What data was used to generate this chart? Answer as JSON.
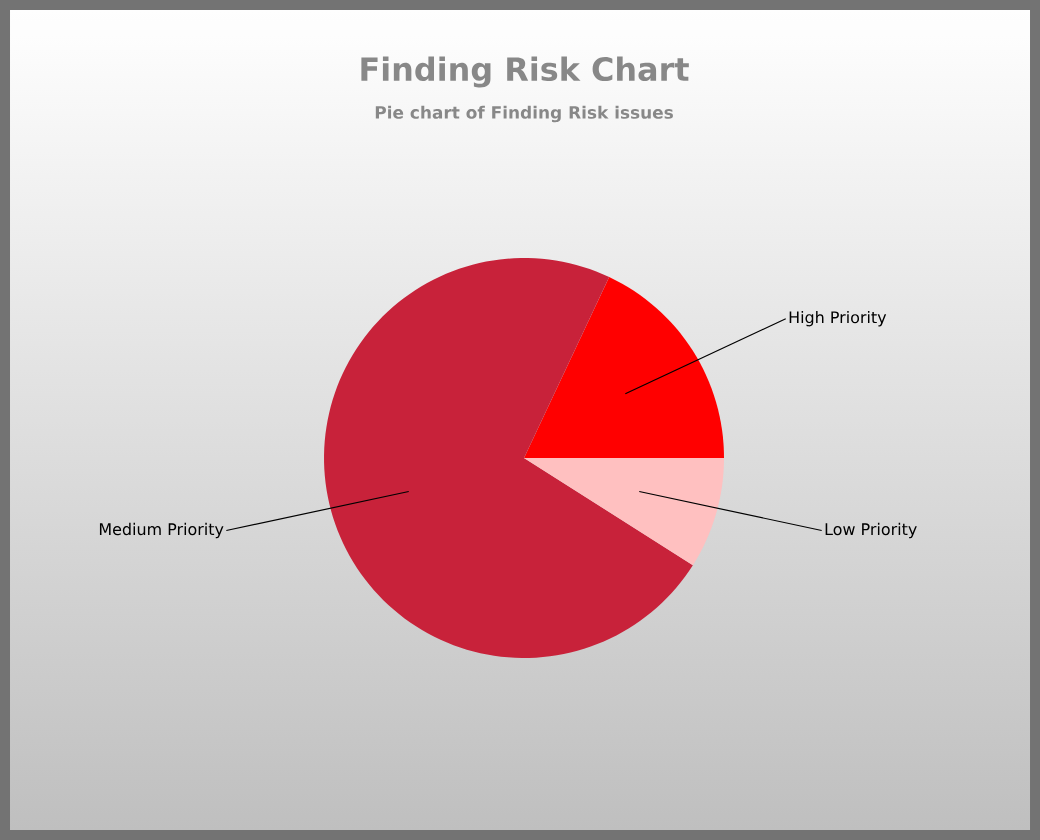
{
  "chart_data": {
    "type": "pie",
    "title": "Finding Risk Chart",
    "subtitle": "Pie chart of Finding Risk issues",
    "categories": [
      "High Priority",
      "Medium Priority",
      "Low Priority"
    ],
    "values": [
      18,
      73,
      9
    ],
    "colors": [
      "#ff0000",
      "#c8223a",
      "#ffc0c0"
    ]
  }
}
